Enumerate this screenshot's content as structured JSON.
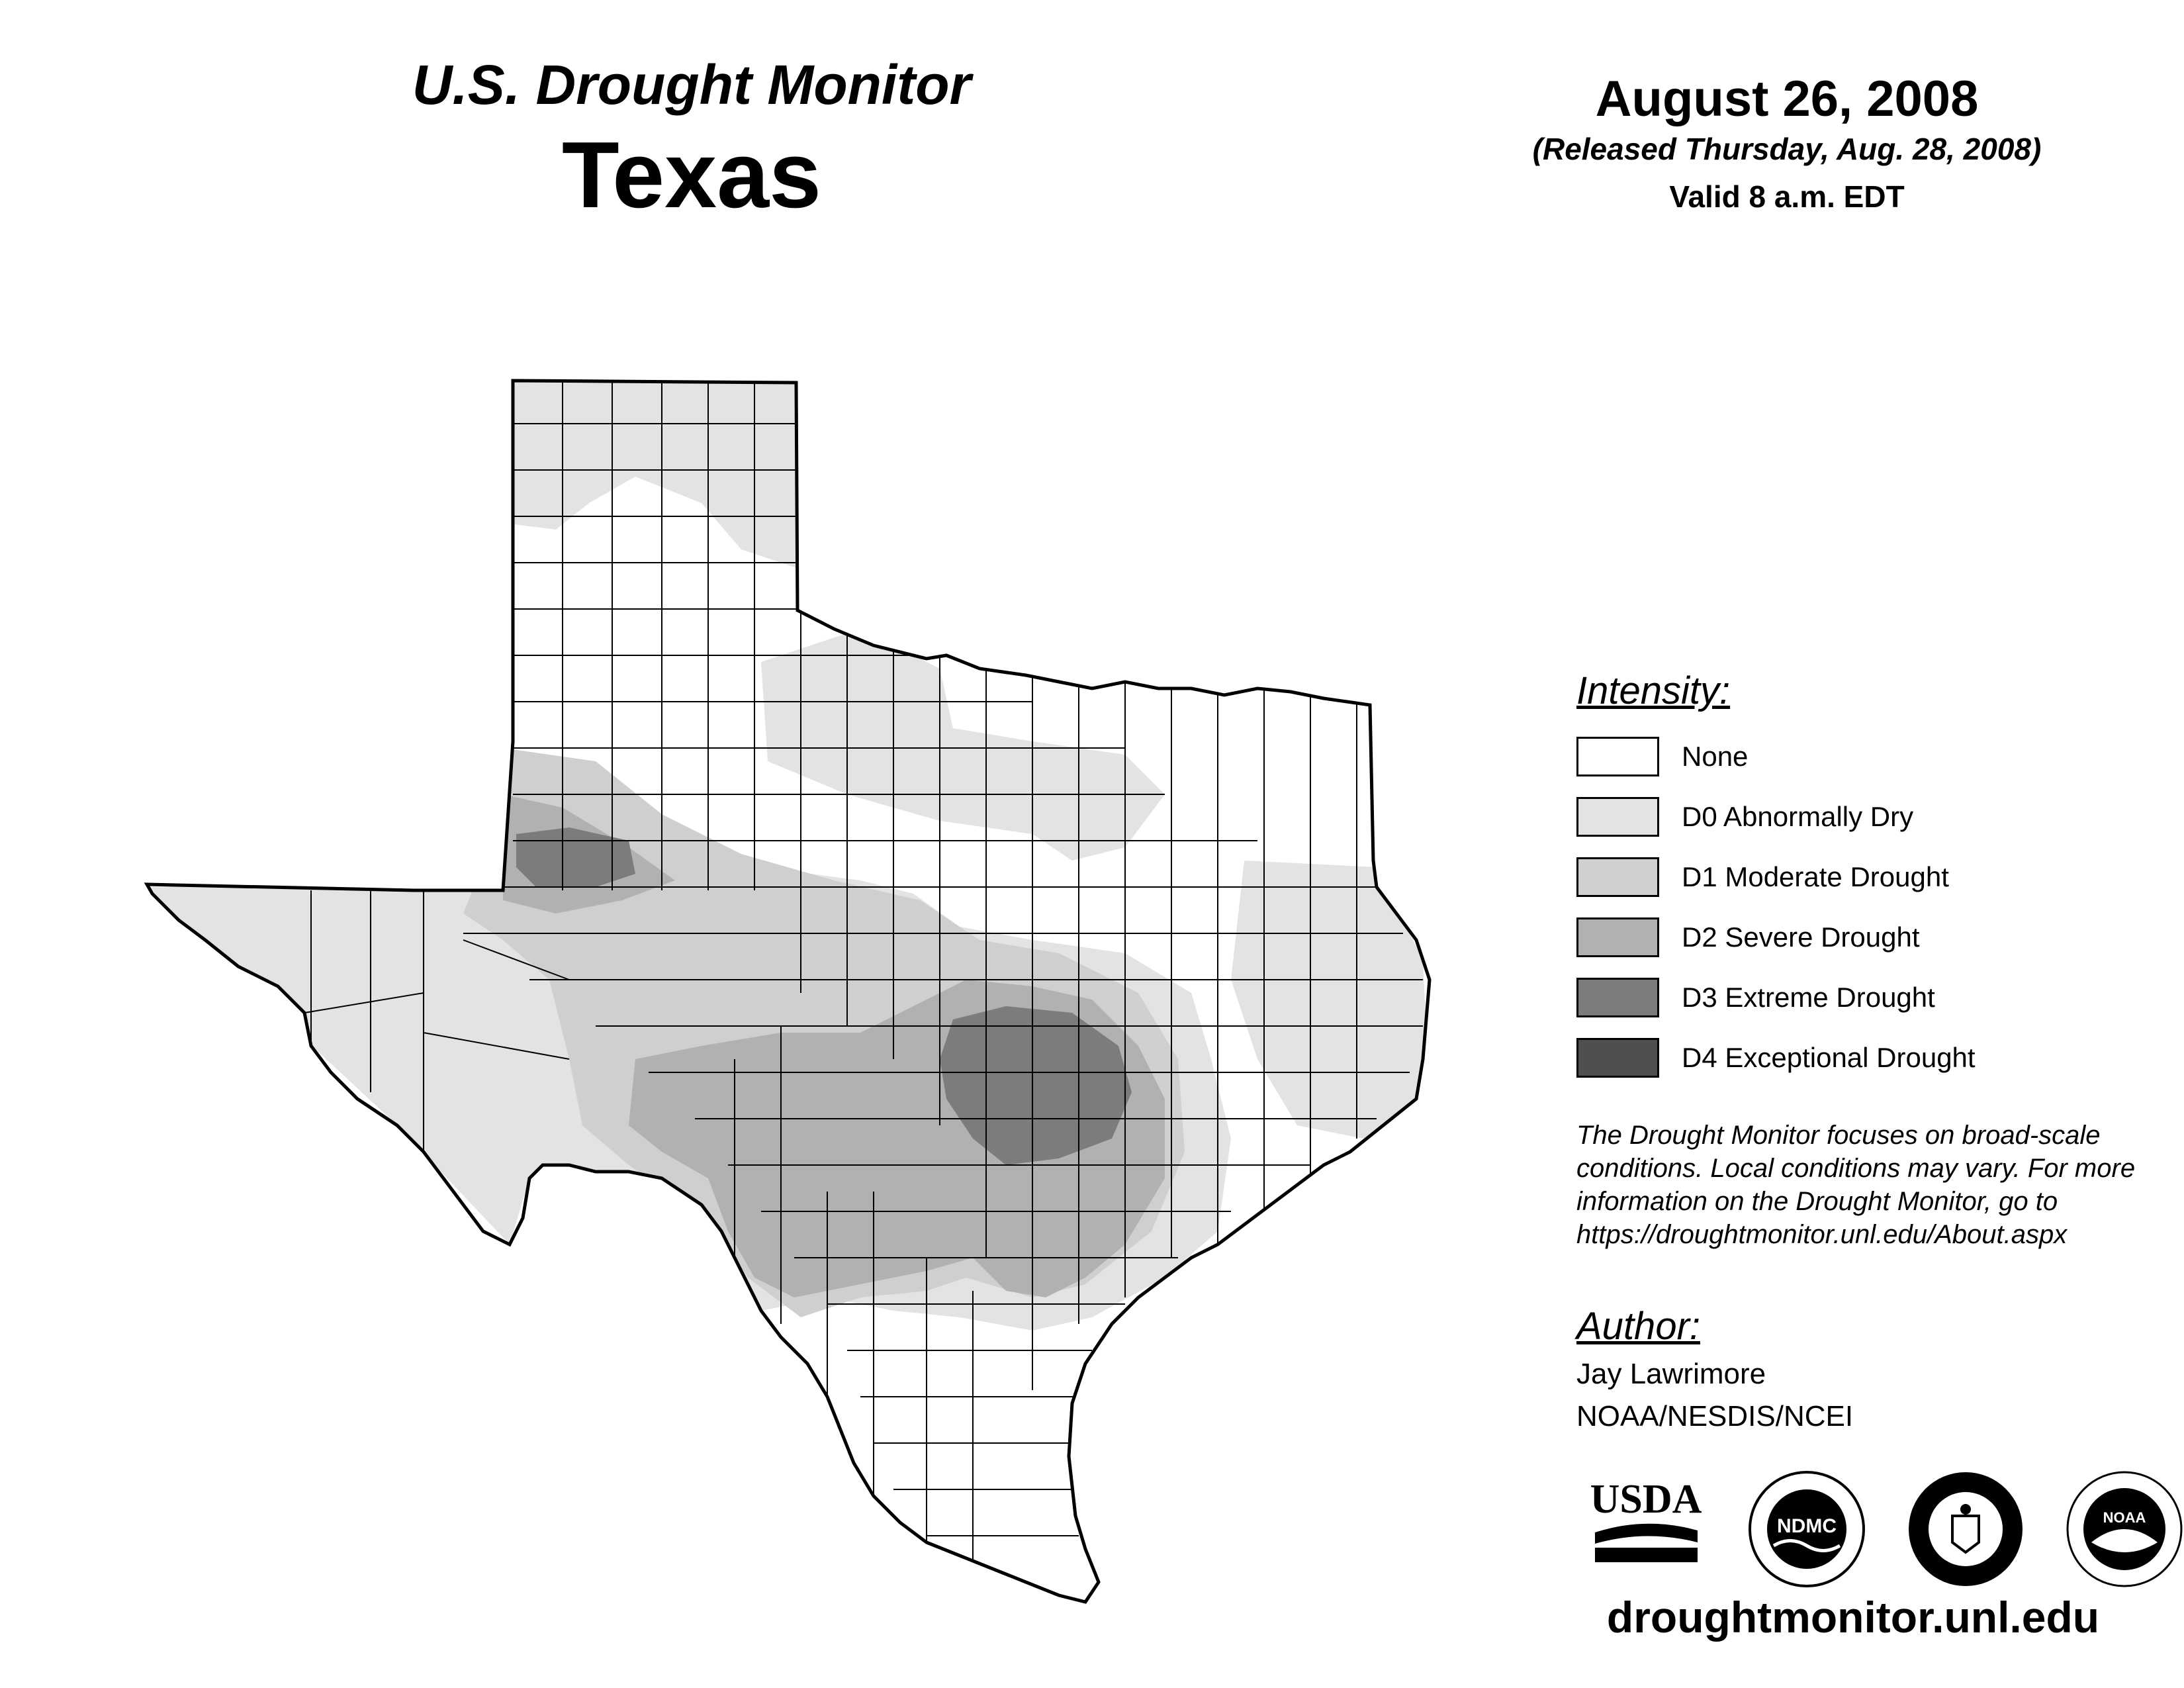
{
  "header": {
    "title": "U.S. Drought Monitor",
    "state": "Texas",
    "date": "August 26, 2008",
    "released": "(Released Thursday, Aug. 28, 2008)",
    "valid": "Valid 8 a.m. EDT"
  },
  "legend": {
    "heading": "Intensity:",
    "items": [
      {
        "label": "None",
        "color": "#ffffff"
      },
      {
        "label": "D0 Abnormally Dry",
        "color": "#e3e3e3"
      },
      {
        "label": "D1 Moderate Drought",
        "color": "#cfcfcf"
      },
      {
        "label": "D2 Severe Drought",
        "color": "#b1b1b1"
      },
      {
        "label": "D3 Extreme Drought",
        "color": "#7c7c7c"
      },
      {
        "label": "D4 Exceptional Drought",
        "color": "#4f4f4f"
      }
    ]
  },
  "note": "The Drought Monitor focuses on broad-scale conditions. Local conditions may vary. For more information on the Drought Monitor, go to https://droughtmonitor.unl.edu/About.aspx",
  "author": {
    "heading": "Author:",
    "name": "Jay Lawrimore",
    "org": "NOAA/NESDIS/NCEI"
  },
  "logos": [
    {
      "name": "usda-logo",
      "text": "USDA"
    },
    {
      "name": "ndmc-logo",
      "text": "NDMC"
    },
    {
      "name": "commerce-logo",
      "text": ""
    },
    {
      "name": "noaa-logo",
      "text": "NOAA"
    }
  ],
  "footer": {
    "url": "droughtmonitor.unl.edu"
  }
}
